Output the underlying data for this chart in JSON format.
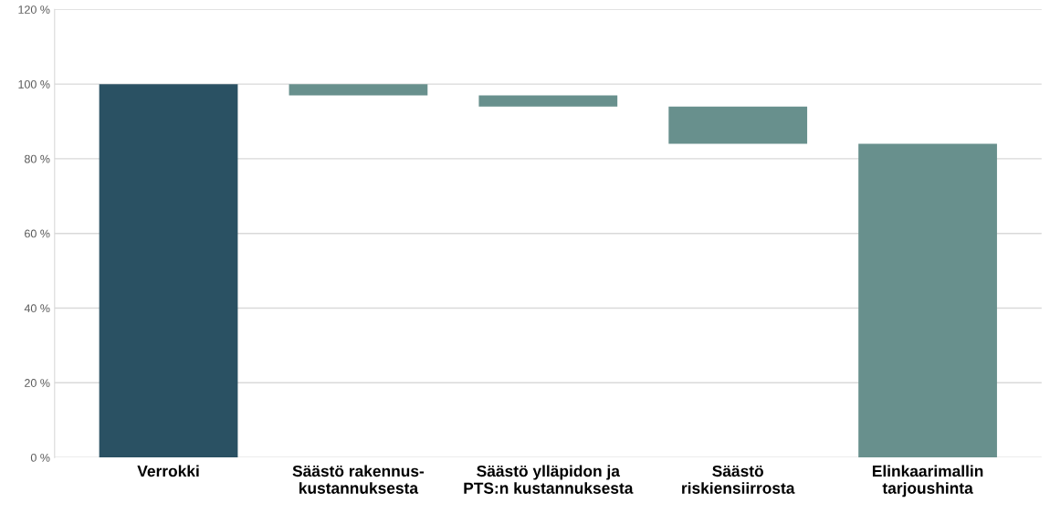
{
  "chart_data": {
    "type": "bar",
    "categories": [
      "Verrokki",
      "Säästö rakennus-\nkustannuksesta",
      "Säästö ylläpidon ja\nPTS:n kustannuksesta",
      "Säästö\nriskiensiirrosta",
      "Elinkaarimallin\ntarjoushinta"
    ],
    "values": [
      100,
      3,
      3,
      10,
      84
    ],
    "base": [
      0,
      97,
      94,
      84,
      0
    ],
    "colors": [
      "#2a5163",
      "#68908d",
      "#68908d",
      "#68908d",
      "#68908d"
    ],
    "ylim": [
      0,
      120
    ],
    "yticks": [
      {
        "value": 0,
        "label": "0 %"
      },
      {
        "value": 20,
        "label": "20 %"
      },
      {
        "value": 40,
        "label": "40 %"
      },
      {
        "value": 60,
        "label": "60 %"
      },
      {
        "value": 80,
        "label": "80 %"
      },
      {
        "value": 100,
        "label": "100 %"
      },
      {
        "value": 120,
        "label": "120 %"
      }
    ],
    "grid": "y"
  }
}
